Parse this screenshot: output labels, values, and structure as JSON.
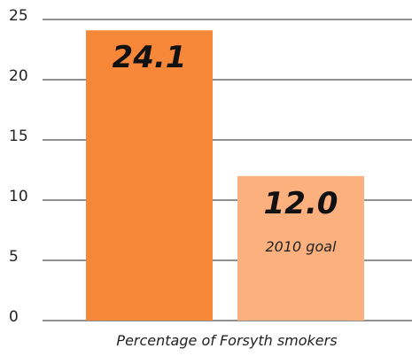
{
  "chart_data": {
    "type": "bar",
    "categories": [
      null,
      null
    ],
    "values": [
      24.1,
      12.0
    ],
    "value_labels": [
      "24.1",
      "12.0"
    ],
    "colors": [
      "#f7883a",
      "#fbb07e"
    ],
    "annotation": "2010 goal",
    "xlabel": "Percentage of Forsyth smokers",
    "ylim": [
      0,
      25
    ],
    "yticks": [
      0,
      5,
      10,
      15,
      20,
      25
    ],
    "grid": true
  }
}
